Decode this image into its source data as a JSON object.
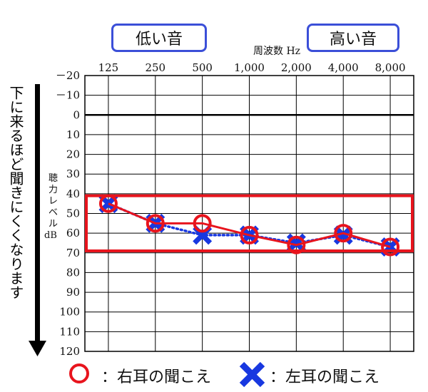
{
  "callouts": {
    "low": "低い音",
    "high": "高い音"
  },
  "side_note": "下に来るほど聞きにくくなります",
  "legend": {
    "right": "：右耳の聞こえ",
    "left": "：左耳の聞こえ"
  },
  "colors": {
    "right": "#e8141d",
    "left": "#1838e0",
    "highlight": "#e8141d",
    "callout_border": "#3b4fd8",
    "grid": "#000000"
  },
  "chart_data": {
    "type": "line",
    "title": "",
    "xlabel": "周波数 Hz",
    "ylabel": "聴力レベル dB",
    "categories": [
      "125",
      "250",
      "500",
      "1,000",
      "2,000",
      "4,000",
      "8,000"
    ],
    "y_ticks": [
      "－20",
      "－10",
      "0",
      "10",
      "20",
      "30",
      "40",
      "50",
      "60",
      "70",
      "80",
      "90",
      "100",
      "110",
      "120"
    ],
    "ylim": [
      -20,
      120
    ],
    "y_inverted": true,
    "grid": true,
    "series": [
      {
        "name": "右耳",
        "marker": "circle",
        "line": "solid",
        "values": [
          45,
          55,
          55,
          61,
          66,
          60,
          67
        ]
      },
      {
        "name": "左耳",
        "marker": "cross",
        "line": "dotted",
        "values": [
          45,
          55,
          61,
          61,
          65,
          61,
          67
        ]
      }
    ],
    "highlight_band": [
      41,
      69
    ]
  }
}
